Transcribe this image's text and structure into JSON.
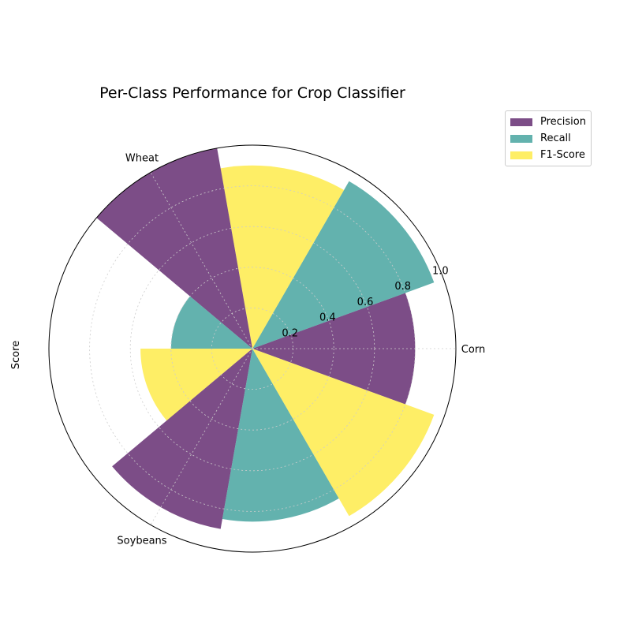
{
  "chart_data": {
    "type": "bar",
    "polar": true,
    "title": "Per-Class Performance for Crop Classifier",
    "ylabel": "Score",
    "xlabel": "",
    "categories": [
      "Corn",
      "Wheat",
      "Soybeans"
    ],
    "series": [
      {
        "name": "Precision",
        "color": "#440154",
        "values": [
          0.8,
          1.0,
          0.9
        ]
      },
      {
        "name": "Recall",
        "color": "#21918c",
        "values": [
          0.95,
          0.4,
          0.85
        ]
      },
      {
        "name": "F1-Score",
        "color": "#fde725",
        "values": [
          0.9,
          0.55,
          0.95
        ]
      }
    ],
    "rlim": [
      0,
      1.0
    ],
    "rticks": [
      "0.2",
      "0.4",
      "0.6",
      "0.8",
      "1.0"
    ],
    "grid": true,
    "legend": "top-right (outside)",
    "bar_opacity": 0.7
  }
}
